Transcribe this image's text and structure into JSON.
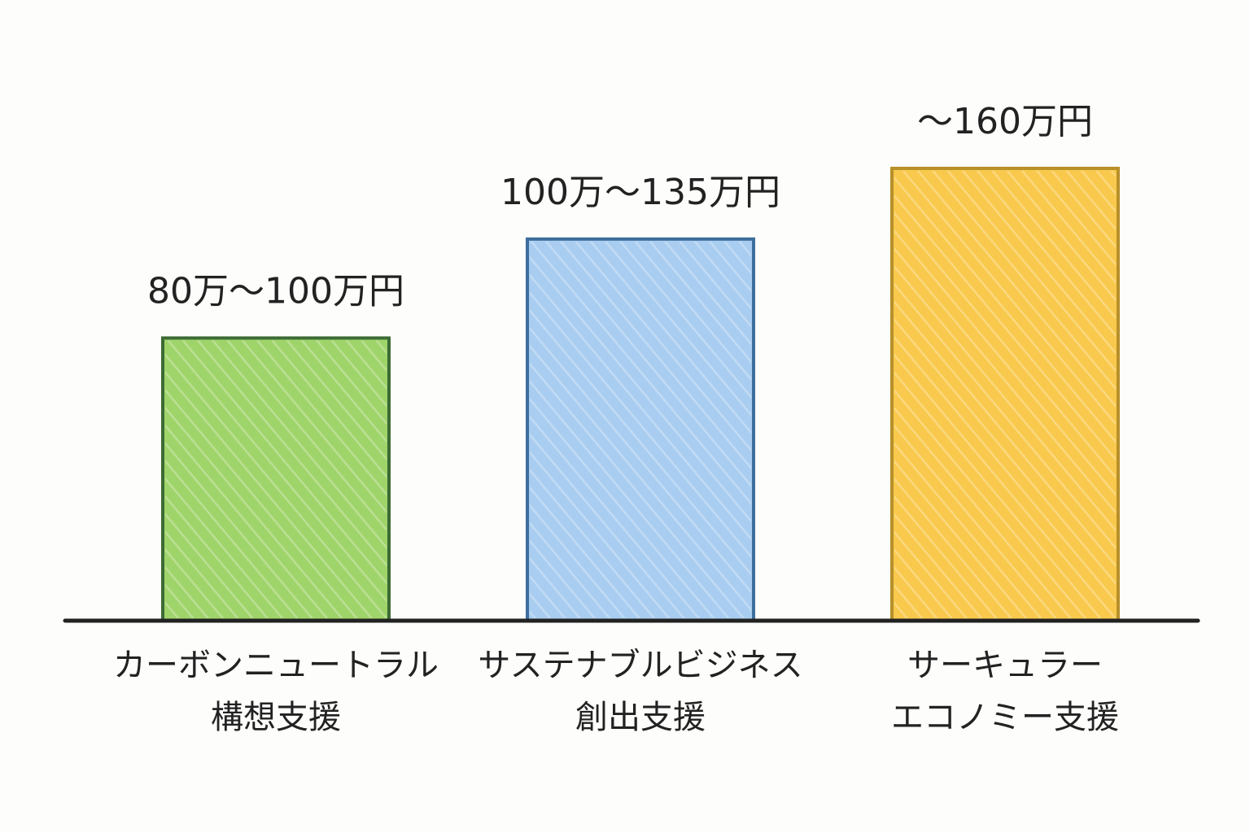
{
  "chart_data": {
    "type": "bar",
    "categories": [
      [
        "カーボンニュートラル",
        "構想支援"
      ],
      [
        "サステナブルビジネス",
        "創出支援"
      ],
      [
        "サーキュラー",
        "エコノミー支援"
      ]
    ],
    "values": [
      100,
      135,
      160
    ],
    "value_labels": [
      "80万〜100万円",
      "100万〜135万円",
      "〜160万円"
    ],
    "colors": [
      "#9fd46a",
      "#a9cdf0",
      "#f9c94d"
    ],
    "ylim": [
      0,
      160
    ]
  }
}
